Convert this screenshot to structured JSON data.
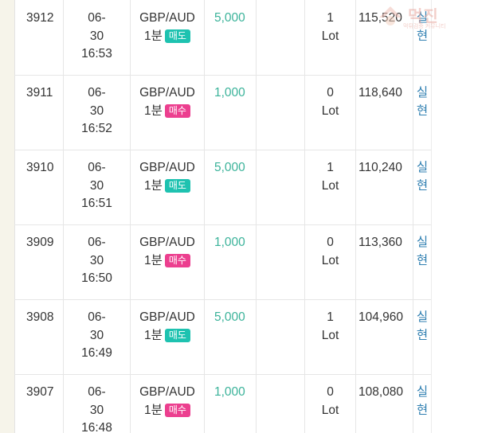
{
  "rows": [
    {
      "id": "3912",
      "time": [
        "06-",
        "30",
        "16:53"
      ],
      "symbol": "GBP/AUD",
      "period": "1분",
      "side": "매도",
      "side_type": "sell",
      "amount": "5,000",
      "lot": [
        "1",
        "Lot"
      ],
      "balance": "115,520",
      "status": [
        "실",
        "현"
      ]
    },
    {
      "id": "3911",
      "time": [
        "06-",
        "30",
        "16:52"
      ],
      "symbol": "GBP/AUD",
      "period": "1분",
      "side": "매수",
      "side_type": "buy",
      "amount": "1,000",
      "lot": [
        "0",
        "Lot"
      ],
      "balance": "118,640",
      "status": [
        "실",
        "현"
      ]
    },
    {
      "id": "3910",
      "time": [
        "06-",
        "30",
        "16:51"
      ],
      "symbol": "GBP/AUD",
      "period": "1분",
      "side": "매도",
      "side_type": "sell",
      "amount": "5,000",
      "lot": [
        "1",
        "Lot"
      ],
      "balance": "110,240",
      "status": [
        "실",
        "현"
      ]
    },
    {
      "id": "3909",
      "time": [
        "06-",
        "30",
        "16:50"
      ],
      "symbol": "GBP/AUD",
      "period": "1분",
      "side": "매수",
      "side_type": "buy",
      "amount": "1,000",
      "lot": [
        "0",
        "Lot"
      ],
      "balance": "113,360",
      "status": [
        "실",
        "현"
      ]
    },
    {
      "id": "3908",
      "time": [
        "06-",
        "30",
        "16:49"
      ],
      "symbol": "GBP/AUD",
      "period": "1분",
      "side": "매도",
      "side_type": "sell",
      "amount": "5,000",
      "lot": [
        "1",
        "Lot"
      ],
      "balance": "104,960",
      "status": [
        "실",
        "현"
      ]
    },
    {
      "id": "3907",
      "time": [
        "06-",
        "30",
        "16:48"
      ],
      "symbol": "GBP/AUD",
      "period": "1분",
      "side": "매수",
      "side_type": "buy",
      "amount": "1,000",
      "lot": [
        "0",
        "Lot"
      ],
      "balance": "108,080",
      "status": [
        "실",
        "현"
      ]
    }
  ],
  "watermark": {
    "title": "먹진",
    "subtitle": "먹튀검증 커뮤니티"
  },
  "colors": {
    "amount": "#3bb39a",
    "status": "#2f7fb1",
    "sell_badge": "#1ec2b0",
    "buy_badge": "#ec3f8f"
  }
}
